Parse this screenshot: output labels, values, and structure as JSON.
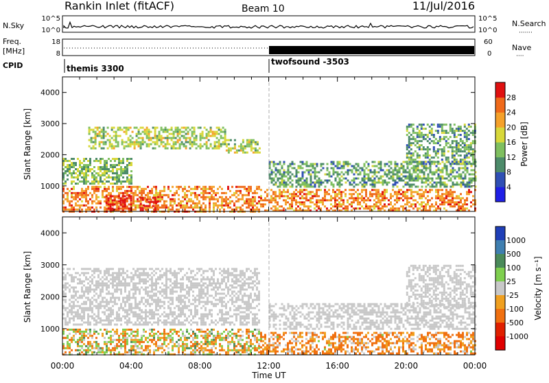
{
  "header": {
    "station": "Rankin Inlet (fitACF)",
    "beam": "Beam 10",
    "date": "11/Jul/2016"
  },
  "top_panels": {
    "nsky_label": "N.Sky",
    "nsky_ticks": [
      "10^5",
      "10^0"
    ],
    "nsearch_label": "N.Search",
    "nsearch_ticks": [
      "10^5",
      "10^0"
    ],
    "freq_label_1": "Freq.",
    "freq_label_2": "[MHz]",
    "freq_ticks": [
      "18",
      "8"
    ],
    "nave_label": "Nave",
    "nave_ticks": [
      "60",
      "0"
    ],
    "cpid_label": "CPID",
    "cpid_segments": [
      {
        "label": "themis 3300",
        "start_hour": 0
      },
      {
        "label": "twofsound -3503",
        "start_hour": 12
      }
    ]
  },
  "axis": {
    "xlabel": "Time UT",
    "x_ticks": [
      "00:00",
      "04:00",
      "08:00",
      "12:00",
      "16:00",
      "20:00",
      "00:00"
    ],
    "ylabel": "Slant Range [km]",
    "y_ticks": [
      "1000",
      "2000",
      "3000",
      "4000"
    ]
  },
  "colorbars": {
    "power": {
      "title": "Power [dB]",
      "labels": [
        "4",
        "8",
        "12",
        "16",
        "20",
        "24",
        "28"
      ],
      "colors": [
        "#1f1fe6",
        "#2f4fb5",
        "#4d8b6a",
        "#7fbf5f",
        "#d8d83a",
        "#f5a12a",
        "#f06a1a",
        "#e01010"
      ]
    },
    "velocity": {
      "title": "Velocity [m s⁻¹]",
      "labels": [
        "1000",
        "500",
        "100",
        "25",
        "-25",
        "-100",
        "-500",
        "-1000"
      ],
      "colors": [
        "#1f3fb8",
        "#3f7fb0",
        "#4a8a5a",
        "#7fcf4f",
        "#c8c8c8",
        "#f0a020",
        "#f07010",
        "#e02000",
        "#e00000"
      ]
    }
  },
  "chart_data": [
    {
      "type": "heatmap",
      "title": "Power",
      "xlabel": "Time UT",
      "ylabel": "Slant Range [km]",
      "xlim": [
        0,
        24
      ],
      "ylim": [
        180,
        4500
      ],
      "colorbar": "Power [dB]",
      "colorbar_ticks": [
        4,
        8,
        12,
        16,
        20,
        24,
        28
      ],
      "echo_regions": [
        {
          "t_start": 0.0,
          "t_end": 11.5,
          "r_start": 200,
          "r_end": 1000,
          "power_db": 24
        },
        {
          "t_start": 2.5,
          "t_end": 4.0,
          "r_start": 200,
          "r_end": 700,
          "power_db": 30
        },
        {
          "t_start": 4.5,
          "t_end": 5.5,
          "r_start": 250,
          "r_end": 650,
          "power_db": 28
        },
        {
          "t_start": 0.0,
          "t_end": 4.0,
          "r_start": 1100,
          "r_end": 1900,
          "power_db": 14
        },
        {
          "t_start": 1.5,
          "t_end": 9.5,
          "r_start": 2200,
          "r_end": 2900,
          "power_db": 16
        },
        {
          "t_start": 9.5,
          "t_end": 11.5,
          "r_start": 2100,
          "r_end": 2500,
          "power_db": 16
        },
        {
          "t_start": 11.5,
          "t_end": 24.0,
          "r_start": 200,
          "r_end": 900,
          "power_db": 24
        },
        {
          "t_start": 12.0,
          "t_end": 24.0,
          "r_start": 1000,
          "r_end": 1800,
          "power_db": 12
        },
        {
          "t_start": 20.0,
          "t_end": 24.0,
          "r_start": 1700,
          "r_end": 3000,
          "power_db": 12
        }
      ]
    },
    {
      "type": "heatmap",
      "title": "Velocity",
      "xlabel": "Time UT",
      "ylabel": "Slant Range [km]",
      "xlim": [
        0,
        24
      ],
      "ylim": [
        180,
        4500
      ],
      "colorbar": "Velocity [m s⁻¹]",
      "colorbar_ticks": [
        1000,
        500,
        100,
        25,
        -25,
        -100,
        -500,
        -1000
      ],
      "echo_regions": [
        {
          "t_start": 0.0,
          "t_end": 11.5,
          "r_start": 200,
          "r_end": 1000,
          "velocity": -20
        },
        {
          "t_start": 0.0,
          "t_end": 11.5,
          "r_start": 1100,
          "r_end": 2900,
          "velocity": 0
        },
        {
          "t_start": 11.5,
          "t_end": 24.0,
          "r_start": 200,
          "r_end": 900,
          "velocity": -120
        },
        {
          "t_start": 12.0,
          "t_end": 24.0,
          "r_start": 1000,
          "r_end": 1800,
          "velocity": 0
        },
        {
          "t_start": 20.0,
          "t_end": 24.0,
          "r_start": 1700,
          "r_end": 3000,
          "velocity": 0
        }
      ]
    }
  ]
}
